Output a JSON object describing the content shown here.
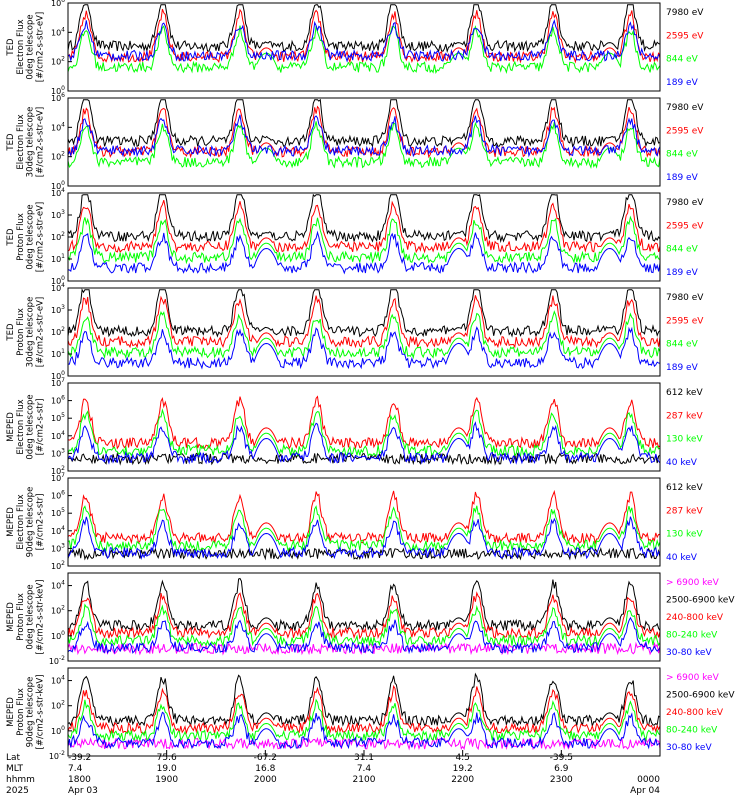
{
  "chart_data": [
    {
      "type": "line",
      "ylabel": [
        "TED",
        "Electron Flux",
        "0deg telescope",
        "[#/cm2-s-str-eV]"
      ],
      "y_exponents": [
        "6",
        "4",
        "2",
        "0"
      ],
      "y_log_range": [
        0,
        6
      ],
      "series": [
        {
          "name": "7980 eV",
          "color": "#000000"
        },
        {
          "name": "2595 eV",
          "color": "#ff0000"
        },
        {
          "name": "844 eV",
          "color": "#00ff00"
        },
        {
          "name": "189 eV",
          "color": "#0000ff"
        }
      ]
    },
    {
      "type": "line",
      "ylabel": [
        "TED",
        "Electron Flux",
        "30deg telescope",
        "[#/cm2-s-str-eV]"
      ],
      "y_exponents": [
        "6",
        "4",
        "2",
        "0"
      ],
      "y_log_range": [
        0,
        6
      ],
      "series": [
        {
          "name": "7980 eV",
          "color": "#000000"
        },
        {
          "name": "2595 eV",
          "color": "#ff0000"
        },
        {
          "name": "844 eV",
          "color": "#00ff00"
        },
        {
          "name": "189 eV",
          "color": "#0000ff"
        }
      ]
    },
    {
      "type": "line",
      "ylabel": [
        "TED",
        "Proton Flux",
        "0deg telescope",
        "[#/cm2-s-str-eV]"
      ],
      "y_exponents": [
        "4",
        "3",
        "2",
        "1",
        "0"
      ],
      "y_log_range": [
        0,
        4
      ],
      "series": [
        {
          "name": "7980 eV",
          "color": "#000000"
        },
        {
          "name": "2595 eV",
          "color": "#ff0000"
        },
        {
          "name": "844 eV",
          "color": "#00ff00"
        },
        {
          "name": "189 eV",
          "color": "#0000ff"
        }
      ]
    },
    {
      "type": "line",
      "ylabel": [
        "TED",
        "Proton Flux",
        "30deg telescope",
        "[#/cm2-s-str-eV]"
      ],
      "y_exponents": [
        "4",
        "3",
        "2",
        "1",
        "0"
      ],
      "y_log_range": [
        0,
        4
      ],
      "series": [
        {
          "name": "7980 eV",
          "color": "#000000"
        },
        {
          "name": "2595 eV",
          "color": "#ff0000"
        },
        {
          "name": "844 eV",
          "color": "#00ff00"
        },
        {
          "name": "189 eV",
          "color": "#0000ff"
        }
      ]
    },
    {
      "type": "line",
      "ylabel": [
        "MEPED",
        "Electron Flux",
        "0deg telescope",
        "[#/cm2-s-str]"
      ],
      "y_exponents": [
        "7",
        "6",
        "5",
        "4",
        "3",
        "2"
      ],
      "y_log_range": [
        2,
        7
      ],
      "series": [
        {
          "name": "612 keV",
          "color": "#000000"
        },
        {
          "name": "287 keV",
          "color": "#ff0000"
        },
        {
          "name": "130 keV",
          "color": "#00ff00"
        },
        {
          "name": "40 keV",
          "color": "#0000ff"
        }
      ]
    },
    {
      "type": "line",
      "ylabel": [
        "MEPED",
        "Electron Flux",
        "90deg telescope",
        "[#/cm2-s-str]"
      ],
      "y_exponents": [
        "7",
        "6",
        "5",
        "4",
        "3",
        "2"
      ],
      "y_log_range": [
        2,
        7
      ],
      "series": [
        {
          "name": "612 keV",
          "color": "#000000"
        },
        {
          "name": "287 keV",
          "color": "#ff0000"
        },
        {
          "name": "130 keV",
          "color": "#00ff00"
        },
        {
          "name": "40 keV",
          "color": "#0000ff"
        }
      ]
    },
    {
      "type": "line",
      "ylabel": [
        "MEPED",
        "Proton Flux",
        "0deg telescope",
        "[#/cm2-s-str-keV]"
      ],
      "y_exponents": [
        "4",
        "2",
        "0",
        "-2"
      ],
      "y_log_range": [
        -2,
        5
      ],
      "series": [
        {
          "name": "> 6900 keV",
          "color": "#ff00ff"
        },
        {
          "name": "2500-6900 keV",
          "color": "#000000"
        },
        {
          "name": "240-800 keV",
          "color": "#ff0000"
        },
        {
          "name": "80-240 keV",
          "color": "#00ff00"
        },
        {
          "name": "30-80 keV",
          "color": "#0000ff"
        }
      ]
    },
    {
      "type": "line",
      "ylabel": [
        "MEPED",
        "Proton Flux",
        "90deg telescope",
        "[#/cm2-s-str-keV]"
      ],
      "y_exponents": [
        "4",
        "2",
        "0",
        "-2"
      ],
      "y_log_range": [
        -2,
        5
      ],
      "series": [
        {
          "name": "> 6900 keV",
          "color": "#ff00ff"
        },
        {
          "name": "2500-6900 keV",
          "color": "#000000"
        },
        {
          "name": "240-800 keV",
          "color": "#ff0000"
        },
        {
          "name": "80-240 keV",
          "color": "#00ff00"
        },
        {
          "name": "30-80 keV",
          "color": "#0000ff"
        }
      ]
    }
  ],
  "x_axis": {
    "row_labels": [
      "Lat",
      "MLT",
      "hhmm",
      "2025"
    ],
    "ticks": [
      {
        "lat": "-39.2",
        "mlt": "7.4",
        "hhmm": "1800",
        "date": "Apr 03"
      },
      {
        "lat": "75.6",
        "mlt": "19.0",
        "hhmm": "1900",
        "date": ""
      },
      {
        "lat": "-67.2",
        "mlt": "16.8",
        "hhmm": "2000",
        "date": ""
      },
      {
        "lat": "31.1",
        "mlt": "7.4",
        "hhmm": "2100",
        "date": ""
      },
      {
        "lat": "4.5",
        "mlt": "19.2",
        "hhmm": "2200",
        "date": ""
      },
      {
        "lat": "-39.5",
        "mlt": "6.9",
        "hhmm": "2300",
        "date": ""
      },
      {
        "lat": "",
        "mlt": "",
        "hhmm": "0000",
        "date": "Apr 04"
      }
    ]
  }
}
